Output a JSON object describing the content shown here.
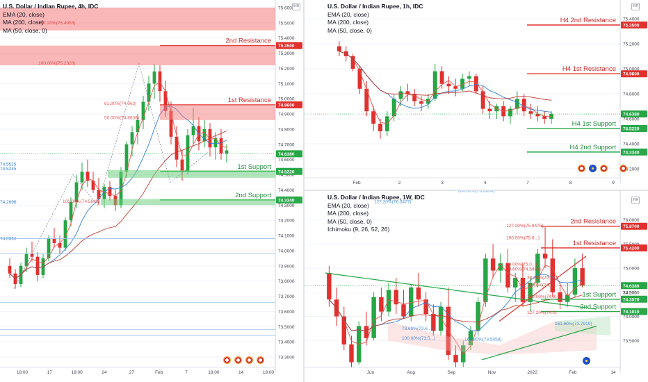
{
  "panels": {
    "p4h": {
      "legend": [
        "U.S. Dollar / Indian Rupee, 4h, IDC",
        "EMA (20, close)",
        "MA (200, close)",
        "MA (50, close, 0)"
      ],
      "badge": "INR",
      "yticks": [
        "75.6000",
        "75.5000",
        "75.4000",
        "75.3000",
        "75.2000",
        "75.1000",
        "75.0000",
        "74.9000",
        "74.8000",
        "74.7000",
        "74.6000",
        "74.5000",
        "74.4000",
        "74.3000",
        "74.2000",
        "74.1000",
        "74.0000",
        "73.9000",
        "73.8000",
        "73.7000",
        "73.6000",
        "73.5000",
        "73.4000",
        "73.3000"
      ],
      "xticks": [
        "18:00",
        "17",
        "18:00",
        "24",
        "27",
        "Feb",
        "7",
        "18:00",
        "14",
        "18:00"
      ],
      "levels": [
        {
          "name": "2nd Resistance",
          "price": "75.3500",
          "kind": "res"
        },
        {
          "name": "1st Resistance",
          "price": "74.9600",
          "kind": "res"
        },
        {
          "name": "1st Support",
          "price": "74.5220",
          "kind": "sup"
        },
        {
          "name": "2nd Support",
          "price": "74.3340",
          "kind": "sup"
        }
      ],
      "current": "74.6380",
      "fibs": [
        "127.20%(75.4983)",
        "100.00%(75.2320)",
        "61.80%(74.963)",
        "50.00%(74.8636)",
        "100.00%(74.5645)"
      ],
      "edge_marks": [
        "74.5515",
        "74.5245",
        "74.2996",
        "74.0663"
      ]
    },
    "p1h": {
      "legend": [
        "U.S. Dollar / Indian Rupee, 1h, IDC",
        "EMA (20, close)",
        "MA (200, close)",
        "MA (50, close, 0)"
      ],
      "badge": "INR",
      "yticks": [
        "75.4000",
        "75.2000",
        "75.0000",
        "74.8000",
        "74.6000",
        "74.4000",
        "74.2000"
      ],
      "xticks": [
        "Feb",
        "2",
        "3",
        "4",
        "7",
        "8",
        "9"
      ],
      "levels": [
        {
          "name": "H4 2nd Resistance",
          "price": "75.3500",
          "kind": "res"
        },
        {
          "name": "H4 1st Resistance",
          "price": "74.9600",
          "kind": "res"
        },
        {
          "name": "H4 1st Support",
          "price": "74.5220",
          "kind": "sup"
        },
        {
          "name": "H4 2nd Support",
          "price": "74.3340",
          "kind": "sup"
        }
      ],
      "current": "74.6380"
    },
    "p1w": {
      "legend": [
        "U.S. Dollar / Indian Rupee, 1W, IDC",
        "EMA (20, close)",
        "MA (200, close)",
        "MA (50, close, 0)",
        "Ichimoku (9, 26, 52, 26)"
      ],
      "badge": "INR",
      "yticks": [
        "76.0000",
        "75.5000",
        "75.0000",
        "74.5000",
        "74.0000",
        "73.5000"
      ],
      "yticks_fine": [
        "75.8000",
        "75.6000",
        "75.4000",
        "75.2000",
        "74.8000",
        "74.6000",
        "74.4000",
        "74.2000",
        "73.8000",
        "73.6000",
        "73.4000",
        "73.3000"
      ],
      "xticks": [
        "Jun",
        "Aug",
        "Sep",
        "Nov",
        "2022",
        "Feb",
        "14"
      ],
      "levels": [
        {
          "name": "2nd Resistance",
          "price": "75.8700",
          "kind": "res"
        },
        {
          "name": "1st Resistance",
          "price": "75.4200",
          "kind": "res"
        },
        {
          "name": "1st Support",
          "price": "74.3570",
          "kind": "sup"
        },
        {
          "name": "2nd Support",
          "price": "74.1010",
          "kind": "sup"
        }
      ],
      "current": "74.6380",
      "countdown": "3d 20h",
      "fibs": [
        "100.00%(76.5850)",
        "127.20%(76.3477)",
        "127.20%(75.8475)",
        "100.00%(75.6...)",
        "50.00%(75.0...)",
        "78.60%(74.5491)",
        "38.20%(74.6...)",
        "78.60%(74.3)",
        "100.00%(74.3)",
        "127.20%(74.0)",
        "78.60%(73.6...)",
        "100.00%(73.5...)",
        "161.80%(73.7919)",
        "161.80%(73.5058)"
      ]
    }
  },
  "chart_data": [
    {
      "type": "candlestick",
      "title": "U.S. Dollar / Indian Rupee, 4h, IDC",
      "ylim": [
        73.25,
        75.65
      ],
      "x_labels": [
        "18:00",
        "17",
        "18:00",
        "24",
        "27",
        "Feb",
        "7",
        "18:00",
        "14",
        "18:00"
      ],
      "ohlc": [
        [
          73.9,
          73.95,
          73.82,
          73.85
        ],
        [
          73.85,
          73.88,
          73.75,
          73.78
        ],
        [
          73.78,
          73.92,
          73.76,
          73.9
        ],
        [
          73.9,
          74.02,
          73.86,
          73.98
        ],
        [
          73.98,
          74.06,
          73.93,
          73.96
        ],
        [
          73.96,
          73.99,
          73.8,
          73.84
        ],
        [
          73.84,
          73.98,
          73.82,
          73.95
        ],
        [
          73.95,
          74.1,
          73.93,
          74.08
        ],
        [
          74.08,
          74.15,
          74.02,
          74.05
        ],
        [
          74.05,
          74.1,
          73.98,
          74.02
        ],
        [
          74.02,
          74.22,
          74.0,
          74.2
        ],
        [
          74.2,
          74.35,
          74.16,
          74.32
        ],
        [
          74.32,
          74.5,
          74.28,
          74.45
        ],
        [
          74.45,
          74.58,
          74.4,
          74.52
        ],
        [
          74.52,
          74.6,
          74.42,
          74.46
        ],
        [
          74.46,
          74.52,
          74.38,
          74.4
        ],
        [
          74.4,
          74.48,
          74.3,
          74.34
        ],
        [
          74.34,
          74.44,
          74.28,
          74.42
        ],
        [
          74.42,
          74.46,
          74.33,
          74.36
        ],
        [
          74.36,
          74.4,
          74.26,
          74.3
        ],
        [
          74.3,
          74.55,
          74.28,
          74.52
        ],
        [
          74.52,
          74.72,
          74.48,
          74.7
        ],
        [
          74.7,
          74.82,
          74.62,
          74.78
        ],
        [
          74.78,
          74.9,
          74.7,
          74.86
        ],
        [
          74.86,
          75.02,
          74.8,
          74.98
        ],
        [
          74.98,
          75.15,
          74.92,
          75.1
        ],
        [
          75.1,
          75.23,
          75.0,
          75.18
        ],
        [
          75.18,
          75.22,
          74.98,
          75.05
        ],
        [
          75.05,
          75.12,
          74.88,
          74.92
        ],
        [
          74.92,
          74.98,
          74.7,
          74.75
        ],
        [
          74.75,
          74.82,
          74.55,
          74.6
        ],
        [
          74.6,
          74.66,
          74.46,
          74.52
        ],
        [
          74.52,
          74.8,
          74.5,
          74.76
        ],
        [
          74.76,
          74.94,
          74.7,
          74.82
        ],
        [
          74.82,
          74.88,
          74.66,
          74.72
        ],
        [
          74.72,
          74.86,
          74.68,
          74.8
        ],
        [
          74.8,
          74.84,
          74.62,
          74.68
        ],
        [
          74.68,
          74.78,
          74.6,
          74.74
        ],
        [
          74.74,
          74.8,
          74.6,
          74.64
        ],
        [
          74.64,
          74.7,
          74.58,
          74.66
        ]
      ],
      "levels": [
        75.35,
        74.96,
        74.522,
        74.334
      ],
      "last": 74.638
    },
    {
      "type": "candlestick",
      "title": "U.S. Dollar / Indian Rupee, 1h, IDC",
      "ylim": [
        74.15,
        75.55
      ],
      "x_labels": [
        "Feb",
        "2",
        "3",
        "4",
        "7",
        "8",
        "9"
      ],
      "ohlc": [
        [
          75.18,
          75.22,
          75.1,
          75.14
        ],
        [
          75.14,
          75.18,
          75.06,
          75.1
        ],
        [
          75.1,
          75.12,
          74.98,
          75.0
        ],
        [
          75.0,
          75.02,
          74.8,
          74.84
        ],
        [
          74.84,
          74.9,
          74.62,
          74.66
        ],
        [
          74.66,
          74.7,
          74.5,
          74.56
        ],
        [
          74.56,
          74.6,
          74.44,
          74.5
        ],
        [
          74.5,
          74.66,
          74.46,
          74.62
        ],
        [
          74.62,
          74.8,
          74.58,
          74.76
        ],
        [
          74.76,
          74.86,
          74.7,
          74.82
        ],
        [
          74.82,
          74.88,
          74.74,
          74.8
        ],
        [
          74.8,
          74.84,
          74.7,
          74.74
        ],
        [
          74.74,
          74.78,
          74.66,
          74.72
        ],
        [
          74.72,
          74.8,
          74.68,
          74.76
        ],
        [
          74.76,
          75.04,
          74.74,
          74.98
        ],
        [
          74.98,
          75.02,
          74.84,
          74.88
        ],
        [
          74.88,
          74.94,
          74.8,
          74.86
        ],
        [
          74.86,
          74.92,
          74.78,
          74.84
        ],
        [
          74.84,
          74.96,
          74.82,
          74.92
        ],
        [
          74.92,
          74.98,
          74.86,
          74.94
        ],
        [
          74.94,
          74.96,
          74.8,
          74.82
        ],
        [
          74.82,
          74.86,
          74.64,
          74.68
        ],
        [
          74.68,
          74.74,
          74.6,
          74.66
        ],
        [
          74.66,
          74.72,
          74.6,
          74.7
        ],
        [
          74.7,
          74.74,
          74.58,
          74.62
        ],
        [
          74.62,
          74.7,
          74.56,
          74.68
        ],
        [
          74.68,
          74.82,
          74.64,
          74.76
        ],
        [
          74.76,
          74.8,
          74.62,
          74.66
        ],
        [
          74.66,
          74.72,
          74.6,
          74.64
        ],
        [
          74.64,
          74.7,
          74.58,
          74.62
        ],
        [
          74.62,
          74.66,
          74.56,
          74.6
        ],
        [
          74.6,
          74.66,
          74.56,
          74.64
        ]
      ],
      "levels": [
        75.35,
        74.96,
        74.522,
        74.334
      ],
      "last": 74.638
    },
    {
      "type": "candlestick",
      "title": "U.S. Dollar / Indian Rupee, 1W, IDC",
      "ylim": [
        73.0,
        76.6
      ],
      "x_labels": [
        "Jun",
        "Aug",
        "Sep",
        "Nov",
        "2022",
        "Feb",
        "14"
      ],
      "ohlc": [
        [
          74.9,
          75.05,
          74.2,
          74.35
        ],
        [
          74.35,
          74.6,
          73.8,
          74.0
        ],
        [
          74.0,
          74.2,
          73.3,
          73.42
        ],
        [
          73.42,
          73.6,
          72.95,
          73.05
        ],
        [
          73.05,
          73.9,
          73.0,
          73.8
        ],
        [
          73.8,
          74.1,
          73.4,
          73.55
        ],
        [
          73.55,
          74.5,
          73.5,
          74.4
        ],
        [
          74.4,
          74.6,
          73.9,
          74.1
        ],
        [
          74.1,
          74.7,
          74.0,
          74.55
        ],
        [
          74.55,
          74.8,
          74.05,
          74.25
        ],
        [
          74.25,
          74.55,
          73.95,
          74.0
        ],
        [
          74.0,
          74.65,
          73.9,
          74.6
        ],
        [
          74.6,
          74.9,
          74.2,
          74.35
        ],
        [
          74.35,
          74.5,
          73.9,
          74.05
        ],
        [
          74.05,
          74.25,
          73.6,
          73.7
        ],
        [
          73.7,
          74.3,
          73.6,
          74.2
        ],
        [
          74.2,
          74.6,
          73.1,
          73.2
        ],
        [
          73.2,
          73.4,
          72.95,
          73.05
        ],
        [
          73.05,
          73.5,
          72.95,
          73.4
        ],
        [
          73.4,
          73.8,
          73.3,
          73.7
        ],
        [
          73.7,
          74.4,
          73.6,
          74.3
        ],
        [
          74.3,
          75.3,
          74.2,
          75.2
        ],
        [
          75.2,
          75.5,
          74.8,
          74.95
        ],
        [
          74.95,
          75.3,
          74.7,
          75.1
        ],
        [
          75.1,
          75.4,
          74.5,
          74.6
        ],
        [
          74.6,
          74.9,
          74.3,
          74.8
        ],
        [
          74.8,
          75.1,
          74.2,
          74.3
        ],
        [
          74.3,
          74.8,
          74.1,
          74.7
        ],
        [
          74.7,
          75.4,
          74.6,
          75.3
        ],
        [
          75.3,
          75.85,
          75.0,
          75.2
        ],
        [
          75.2,
          75.6,
          74.4,
          74.5
        ],
        [
          74.5,
          74.7,
          74.15,
          74.3
        ],
        [
          74.3,
          74.7,
          74.2,
          74.45
        ],
        [
          74.45,
          75.2,
          74.4,
          75.0
        ],
        [
          75.0,
          75.3,
          74.6,
          74.64
        ]
      ],
      "levels": [
        75.87,
        75.42,
        74.357,
        74.101
      ],
      "last": 74.638
    }
  ]
}
